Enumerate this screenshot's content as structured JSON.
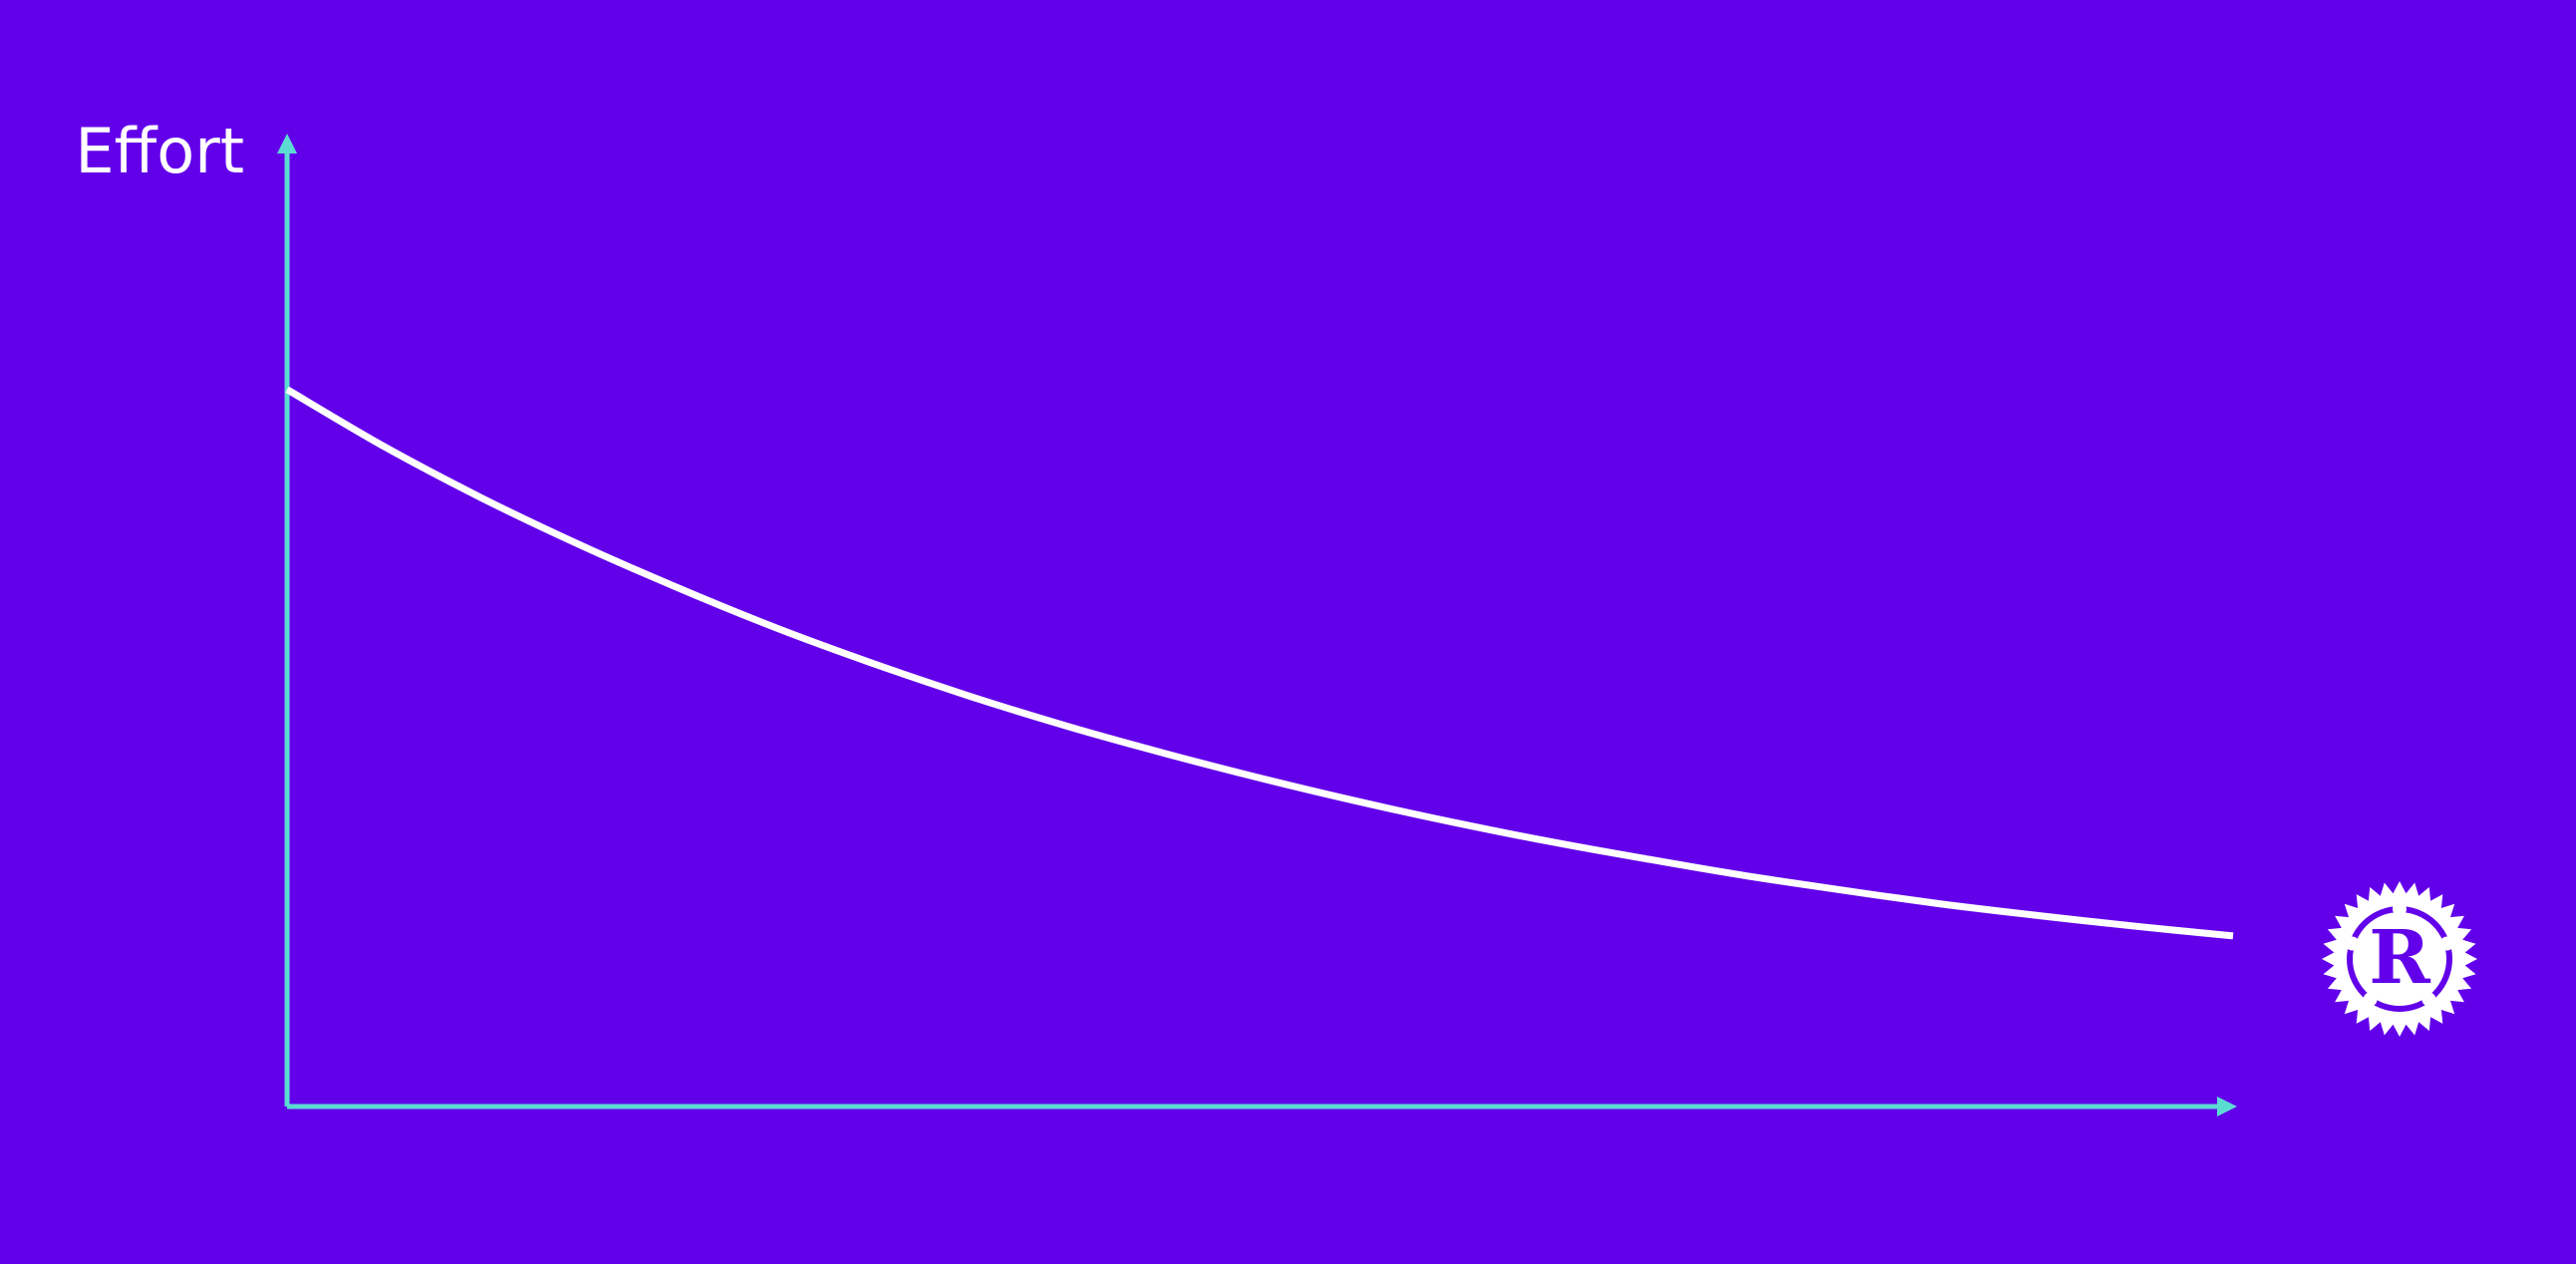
{
  "colors": {
    "background": "#6200EA",
    "axis": "#5CDBD3",
    "curve": "#FFFFFF",
    "logo": "#FFFFFF"
  },
  "logo": {
    "icon": "rust-logo-icon",
    "letter": "R"
  },
  "chart_data": {
    "type": "line",
    "title": "",
    "xlabel": "",
    "ylabel": "Effort",
    "xlim": [
      0,
      1
    ],
    "ylim": [
      0,
      1
    ],
    "grid": false,
    "legend": "none",
    "series": [
      {
        "x": [
          0.0,
          0.05,
          0.1,
          0.15,
          0.2,
          0.25,
          0.3,
          0.35,
          0.4,
          0.45,
          0.5,
          0.55,
          0.6,
          0.65,
          0.7,
          0.75,
          0.8,
          0.85,
          0.9,
          0.95,
          1.0
        ],
        "values": [
          0.74,
          0.681,
          0.628,
          0.58,
          0.536,
          0.495,
          0.458,
          0.424,
          0.393,
          0.365,
          0.339,
          0.315,
          0.293,
          0.273,
          0.255,
          0.238,
          0.223,
          0.209,
          0.197,
          0.186,
          0.176
        ]
      }
    ]
  }
}
